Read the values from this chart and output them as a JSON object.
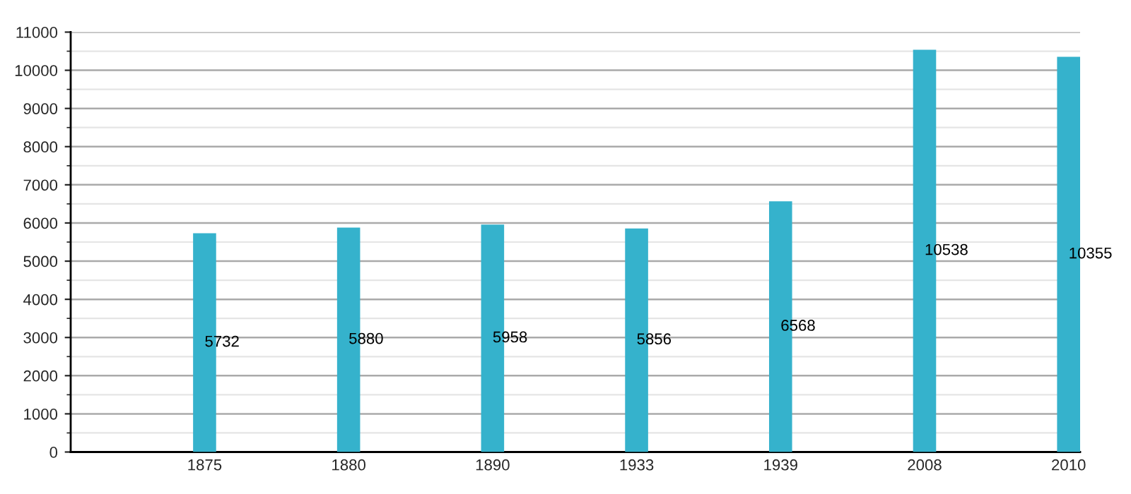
{
  "chart_data": {
    "type": "bar",
    "categories": [
      "1875",
      "1880",
      "1890",
      "1933",
      "1939",
      "2008",
      "2010"
    ],
    "values": [
      5732,
      5880,
      5958,
      5856,
      6568,
      10538,
      10355
    ],
    "color": "#35b2cc",
    "ylim": [
      0,
      11000
    ],
    "yticks": [
      0,
      1000,
      2000,
      3000,
      4000,
      5000,
      6000,
      7000,
      8000,
      9000,
      10000,
      11000
    ],
    "grid": "y",
    "data_labels": true
  }
}
